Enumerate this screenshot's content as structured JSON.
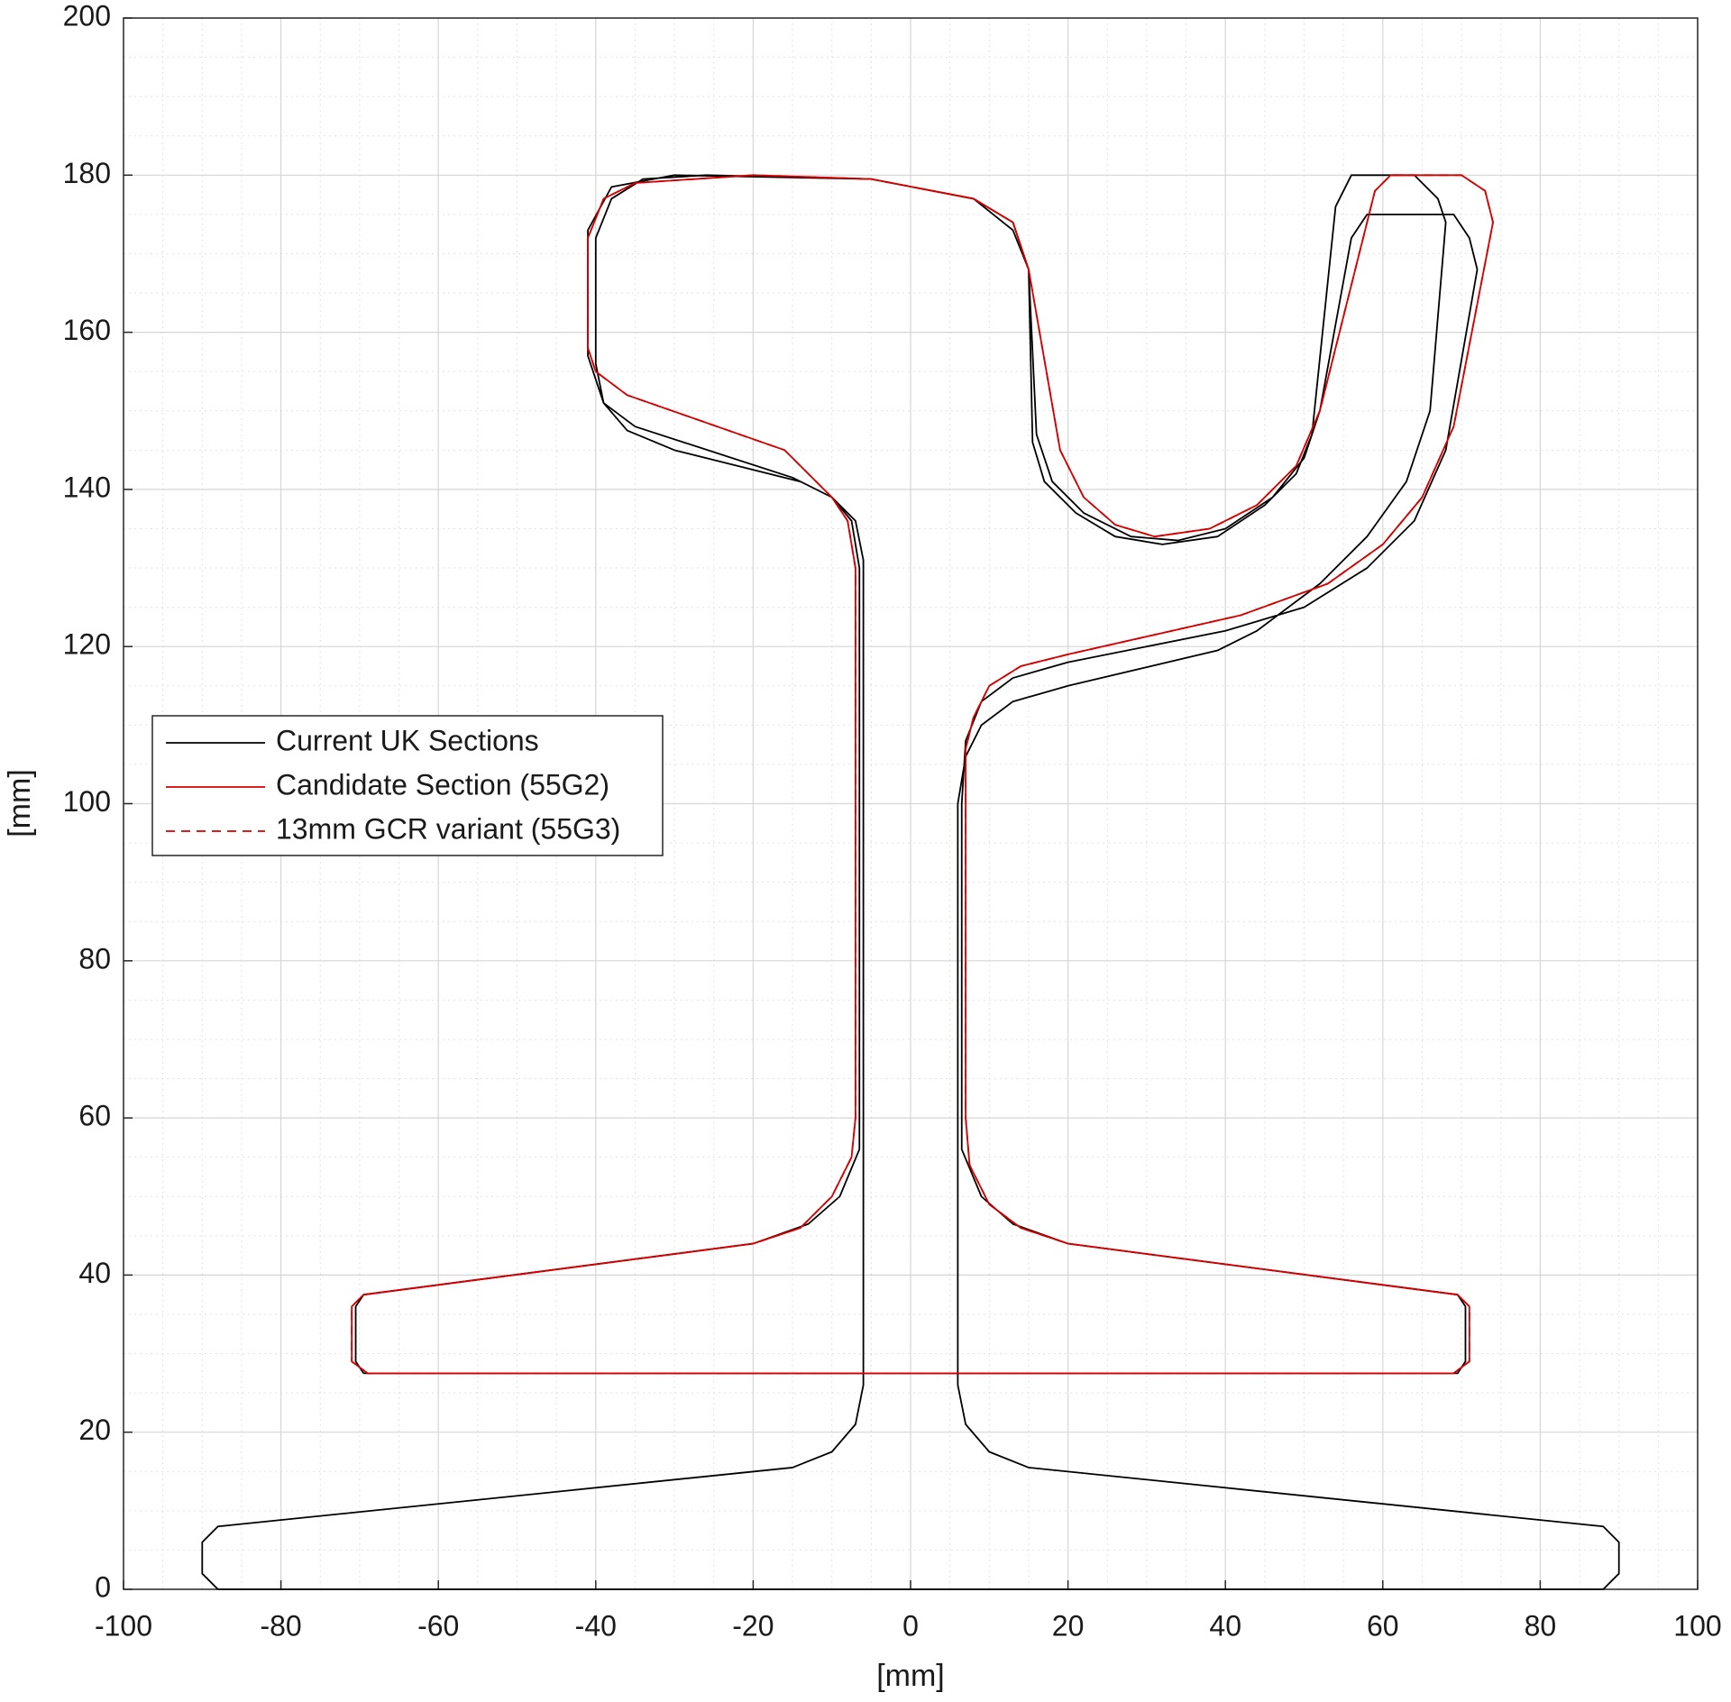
{
  "chart_data": {
    "type": "line",
    "xlabel": "[mm]",
    "ylabel": "[mm]",
    "xlim": [
      -100,
      100
    ],
    "ylim": [
      0,
      200
    ],
    "xticks": [
      -100,
      -80,
      -60,
      -40,
      -20,
      0,
      20,
      40,
      60,
      80,
      100
    ],
    "yticks": [
      0,
      20,
      40,
      60,
      80,
      100,
      120,
      140,
      160,
      180,
      200
    ],
    "grid": true,
    "minor_grid": true,
    "legend": "center left",
    "series": [
      {
        "name": "Current UK Sections",
        "color": "#000000",
        "dashed": false,
        "x": [
          -88,
          -90,
          -90,
          -88,
          -15,
          -10,
          -7,
          -6,
          -6,
          -7,
          -10,
          -14,
          -30,
          -36,
          -39,
          -40,
          -40,
          -38,
          -34,
          -26,
          -5,
          8,
          13,
          15,
          15.5,
          17,
          21,
          26,
          32,
          39,
          45,
          49,
          51,
          54,
          56,
          64,
          67,
          68,
          66,
          63,
          58,
          52,
          44,
          39,
          20,
          13,
          9,
          7,
          6,
          6,
          7,
          10,
          15,
          88,
          90,
          90,
          88,
          -88,
          null,
          -69.5,
          -70.5,
          -70.5,
          -69.5,
          -20,
          -13,
          -9,
          -6.5,
          -6.5,
          -7.5,
          -10,
          -15,
          -35,
          -39,
          -41,
          -41,
          -38,
          -30,
          -5,
          8,
          13,
          15,
          16,
          18,
          22,
          28,
          34,
          40,
          46,
          50,
          52,
          56,
          58,
          69,
          71,
          72,
          68,
          64,
          58,
          50,
          40,
          20,
          13,
          9,
          7,
          6.5,
          6.5,
          9,
          13,
          20,
          69.5,
          70.5,
          70.5,
          69.5,
          -69.5
        ],
        "values": [
          0,
          2,
          6,
          8,
          15.5,
          17.5,
          21,
          26,
          131,
          136,
          139,
          141,
          145,
          147.5,
          151,
          156,
          172,
          177,
          179.5,
          180,
          179.5,
          177,
          173,
          168,
          146,
          141,
          137,
          134,
          133,
          134,
          138,
          142,
          147,
          176,
          180,
          180,
          177,
          174,
          150,
          141,
          134,
          128,
          122,
          119.5,
          115,
          113,
          110,
          106,
          100,
          26,
          21,
          17.5,
          15.5,
          8,
          6,
          2,
          0,
          0,
          null,
          27.5,
          29,
          36,
          37.5,
          44,
          46.5,
          50,
          56,
          130,
          136,
          139,
          141.5,
          148,
          151,
          157,
          173,
          178.5,
          180,
          179.5,
          177,
          174,
          168,
          147,
          141,
          137,
          134,
          133.5,
          135,
          139,
          144,
          150,
          172,
          175,
          175,
          172,
          168,
          145,
          136,
          130,
          125,
          122,
          118,
          116,
          113,
          108,
          100,
          56,
          50,
          46.5,
          44,
          37.5,
          36,
          29,
          27.5,
          27.5
        ]
      },
      {
        "name": "Candidate Section (55G2)",
        "color": "#d40000",
        "dashed": false,
        "x": [
          -69,
          -71,
          -71,
          -69.5,
          -20,
          -14,
          -10,
          -7.5,
          -7,
          -7,
          -8,
          -10,
          -16,
          -36,
          -40,
          -41,
          -41,
          -39,
          -35,
          -20,
          -5,
          8,
          13,
          15,
          19,
          22,
          26,
          31,
          38,
          44,
          49,
          52,
          59,
          61,
          70,
          73,
          74,
          69,
          65,
          60,
          53,
          42,
          20,
          14,
          10,
          8,
          7,
          7,
          7.5,
          10,
          14,
          20,
          69.5,
          71,
          71,
          69,
          -69
        ],
        "values": [
          27.5,
          29,
          36,
          37.5,
          44,
          46,
          50,
          55,
          60,
          130,
          136,
          139,
          145,
          152,
          155,
          158,
          172,
          177,
          179,
          180,
          179.5,
          177,
          174,
          168,
          145,
          139,
          135.5,
          134,
          135,
          138,
          143,
          150,
          178,
          180,
          180,
          178,
          174,
          148,
          139,
          133,
          128,
          124,
          119,
          117.5,
          115,
          111,
          107,
          60,
          54,
          49,
          46,
          44,
          37.5,
          36,
          29,
          27.5,
          27.5
        ]
      },
      {
        "name": "13mm GCR variant (55G3)",
        "color": "#d40000",
        "dashed": true,
        "x": [
          -69,
          -71,
          -71,
          -69.5,
          -20,
          -14,
          -10,
          -7.5,
          -7,
          -7,
          -8,
          -10,
          -16,
          -36,
          -40,
          -41,
          -41,
          -39,
          -35,
          -20,
          -5,
          8,
          13,
          15,
          19,
          22,
          26,
          31,
          38,
          44,
          49,
          52,
          59,
          61,
          70,
          73,
          74,
          69,
          65,
          60,
          53,
          42,
          20,
          14,
          10,
          8,
          7,
          7,
          7.5,
          10,
          14,
          20,
          69.5,
          71,
          71,
          69,
          -69
        ],
        "values": [
          27.5,
          29,
          36,
          37.5,
          44,
          46,
          50,
          55,
          60,
          130,
          136,
          139,
          145,
          152,
          155,
          158,
          172,
          177,
          179,
          180,
          179.5,
          177,
          174,
          168,
          145,
          139,
          135.5,
          134,
          135,
          138,
          143,
          150,
          178,
          180,
          180,
          178,
          174,
          148,
          139,
          133,
          128,
          124,
          119,
          117.5,
          115,
          111,
          107,
          60,
          54,
          49,
          46,
          44,
          37.5,
          36,
          29,
          27.5,
          27.5
        ]
      }
    ]
  }
}
